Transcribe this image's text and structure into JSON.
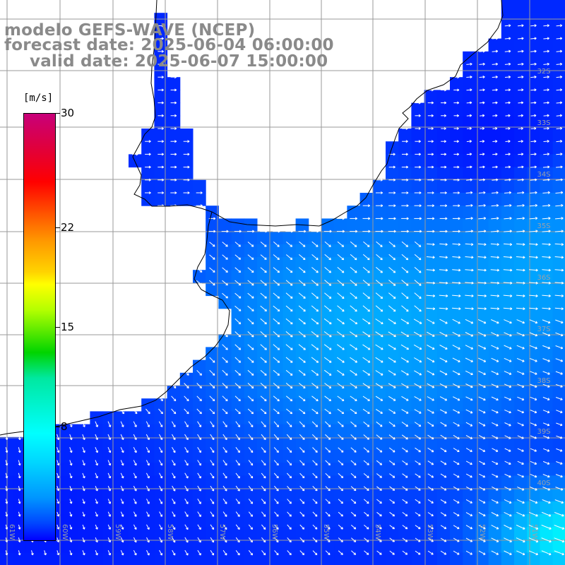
{
  "title": {
    "line1": "modelo GEFS-WAVE (NCEP)",
    "line2": "forecast date: 2025-06-04 06:00:00",
    "line3": "valid date: 2025-06-07 15:00:00"
  },
  "colorbar": {
    "unit": "[m/s]",
    "ticks": [
      {
        "label": "30",
        "value": 30
      },
      {
        "label": "22",
        "value": 22
      },
      {
        "label": "15",
        "value": 15
      },
      {
        "label": "8",
        "value": 8
      }
    ]
  },
  "axes": {
    "lon_labels": [
      "61W",
      "60W",
      "59W",
      "58W",
      "57W",
      "56W",
      "55W",
      "54W",
      "53W",
      "52W",
      "51W"
    ],
    "lat_labels": [
      "32S",
      "33S",
      "34S",
      "35S",
      "36S",
      "37S",
      "38S",
      "39S",
      "40S"
    ]
  },
  "colors": {
    "land": "#ffffff",
    "coast": "#000000",
    "grid": "#9a9a9a",
    "arrow": "#ffffff",
    "field_low": "#0000ff",
    "field_mid": "#0096ff",
    "field_high": "#00ffff"
  }
}
